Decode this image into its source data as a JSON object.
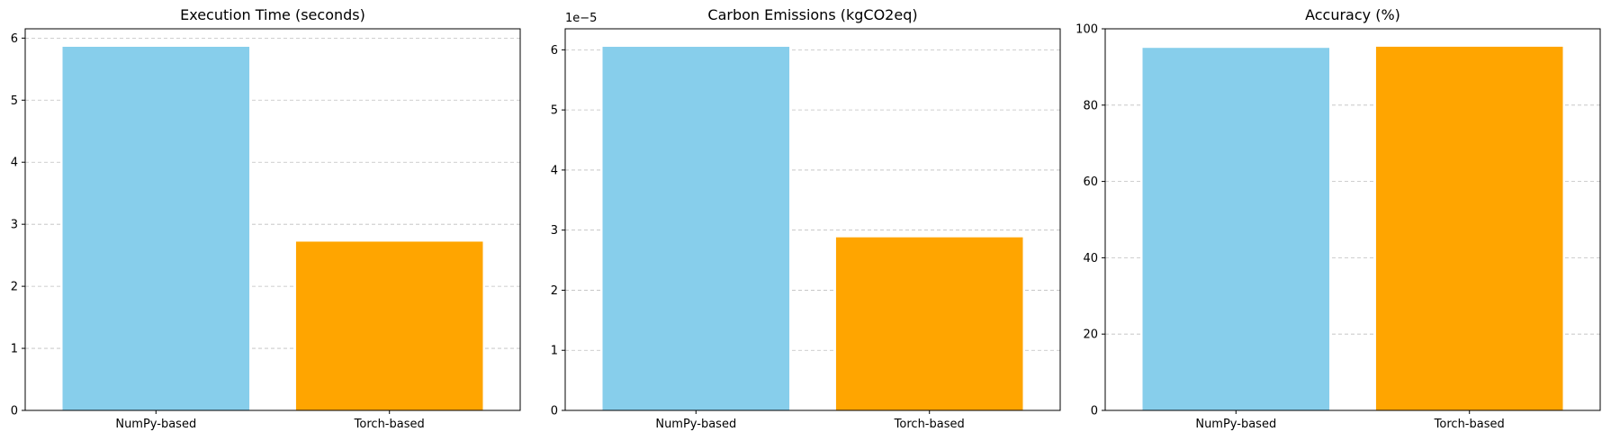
{
  "chart_data": [
    {
      "type": "bar",
      "title": "Execution Time (seconds)",
      "categories": [
        "NumPy-based",
        "Torch-based"
      ],
      "values": [
        5.86,
        2.72
      ],
      "colors": [
        "#87CEEB",
        "#FFA500"
      ],
      "ylim": [
        0,
        6.15
      ],
      "yticks": [
        0,
        1,
        2,
        3,
        4,
        5,
        6
      ],
      "ytick_labels": [
        "0",
        "1",
        "2",
        "3",
        "4",
        "5",
        "6"
      ],
      "offset_label": "",
      "grid": "y-dashed"
    },
    {
      "type": "bar",
      "title": "Carbon Emissions (kgCO2eq)",
      "categories": [
        "NumPy-based",
        "Torch-based"
      ],
      "values": [
        6.05e-05,
        2.88e-05
      ],
      "colors": [
        "#87CEEB",
        "#FFA500"
      ],
      "ylim": [
        0,
        6.35e-05
      ],
      "yticks": [
        0,
        1e-05,
        2e-05,
        3e-05,
        4e-05,
        5e-05,
        6e-05
      ],
      "ytick_labels": [
        "0",
        "1",
        "2",
        "3",
        "4",
        "5",
        "6"
      ],
      "offset_label": "1e−5",
      "grid": "y-dashed"
    },
    {
      "type": "bar",
      "title": "Accuracy (%)",
      "categories": [
        "NumPy-based",
        "Torch-based"
      ],
      "values": [
        95.0,
        95.3
      ],
      "colors": [
        "#87CEEB",
        "#FFA500"
      ],
      "ylim": [
        0,
        100
      ],
      "yticks": [
        0,
        20,
        40,
        60,
        80,
        100
      ],
      "ytick_labels": [
        "0",
        "20",
        "40",
        "60",
        "80",
        "100"
      ],
      "offset_label": "",
      "grid": "y-dashed"
    }
  ]
}
